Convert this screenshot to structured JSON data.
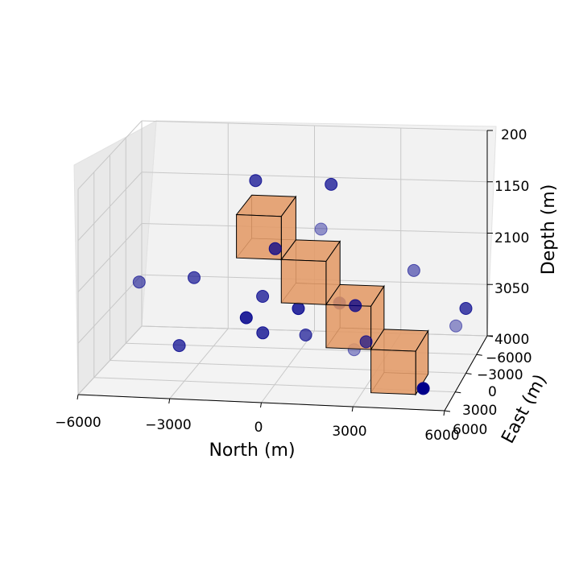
{
  "chart_data": {
    "type": "scatter",
    "title": "",
    "xlabel": "North (m)",
    "ylabel": "East (m)",
    "zlabel": "Depth (m)",
    "x_ticks": [
      "−6000",
      "−3000",
      "0",
      "3000",
      "6000"
    ],
    "y_ticks": [
      "−6000",
      "−3000",
      "0",
      "3000",
      "6000"
    ],
    "z_ticks": [
      "200",
      "1150",
      "2100",
      "3050",
      "4000"
    ],
    "xlim": [
      -6000,
      6000
    ],
    "ylim": [
      -6000,
      6000
    ],
    "zlim": [
      200,
      4000
    ],
    "z_inverted": true,
    "grid": true,
    "marker_color": "#00008b",
    "box_color": "#e39a66",
    "points": [
      {
        "north": -1400,
        "east": -2000,
        "depth": 800,
        "alpha": 0.7
      },
      {
        "north": 1200,
        "east": -1800,
        "depth": 800,
        "alpha": 0.7
      },
      {
        "north": 1400,
        "east": 2000,
        "depth": 1200,
        "alpha": 0.4
      },
      {
        "north": -400,
        "east": 200,
        "depth": 1800,
        "alpha": 0.75
      },
      {
        "north": 4500,
        "east": 2000,
        "depth": 1900,
        "alpha": 0.5
      },
      {
        "north": -4500,
        "east": 3000,
        "depth": 2200,
        "alpha": 0.55
      },
      {
        "north": -3000,
        "east": 1000,
        "depth": 2300,
        "alpha": 0.65
      },
      {
        "north": -700,
        "east": 1000,
        "depth": 2600,
        "alpha": 0.7
      },
      {
        "north": 500,
        "east": 1000,
        "depth": 2800,
        "alpha": 0.8
      },
      {
        "north": 1600,
        "east": -1000,
        "depth": 2900,
        "alpha": 1.0
      },
      {
        "north": 2300,
        "east": 200,
        "depth": 2800,
        "alpha": 0.75
      },
      {
        "north": 6000,
        "east": 0,
        "depth": 2800,
        "alpha": 0.7
      },
      {
        "north": 6000,
        "east": 2800,
        "depth": 2800,
        "alpha": 0.4
      },
      {
        "north": -1800,
        "east": -2500,
        "depth": 3400,
        "alpha": 0.85
      },
      {
        "north": -1000,
        "east": -1000,
        "depth": 3500,
        "alpha": 0.75
      },
      {
        "north": 600,
        "east": 0,
        "depth": 3400,
        "alpha": 0.65
      },
      {
        "north": 2400,
        "east": 1200,
        "depth": 3500,
        "alpha": 0.4
      },
      {
        "north": 2500,
        "east": -1000,
        "depth": 3600,
        "alpha": 0.65
      },
      {
        "north": -4000,
        "east": -2000,
        "depth": 3900,
        "alpha": 0.7
      },
      {
        "north": 5000,
        "east": 3500,
        "depth": 3900,
        "alpha": 1.0
      }
    ],
    "boxes": [
      {
        "north": [
          -1500,
          0
        ],
        "east": [
          -1800,
          1500
        ],
        "depth": [
          1050,
          1850
        ]
      },
      {
        "north": [
          0,
          1500
        ],
        "east": [
          -1800,
          1500
        ],
        "depth": [
          1850,
          2650
        ]
      },
      {
        "north": [
          1500,
          3000
        ],
        "east": [
          -1800,
          1500
        ],
        "depth": [
          2650,
          3450
        ]
      },
      {
        "north": [
          3000,
          4500
        ],
        "east": [
          -1800,
          1500
        ],
        "depth": [
          3450,
          4250
        ]
      }
    ]
  }
}
